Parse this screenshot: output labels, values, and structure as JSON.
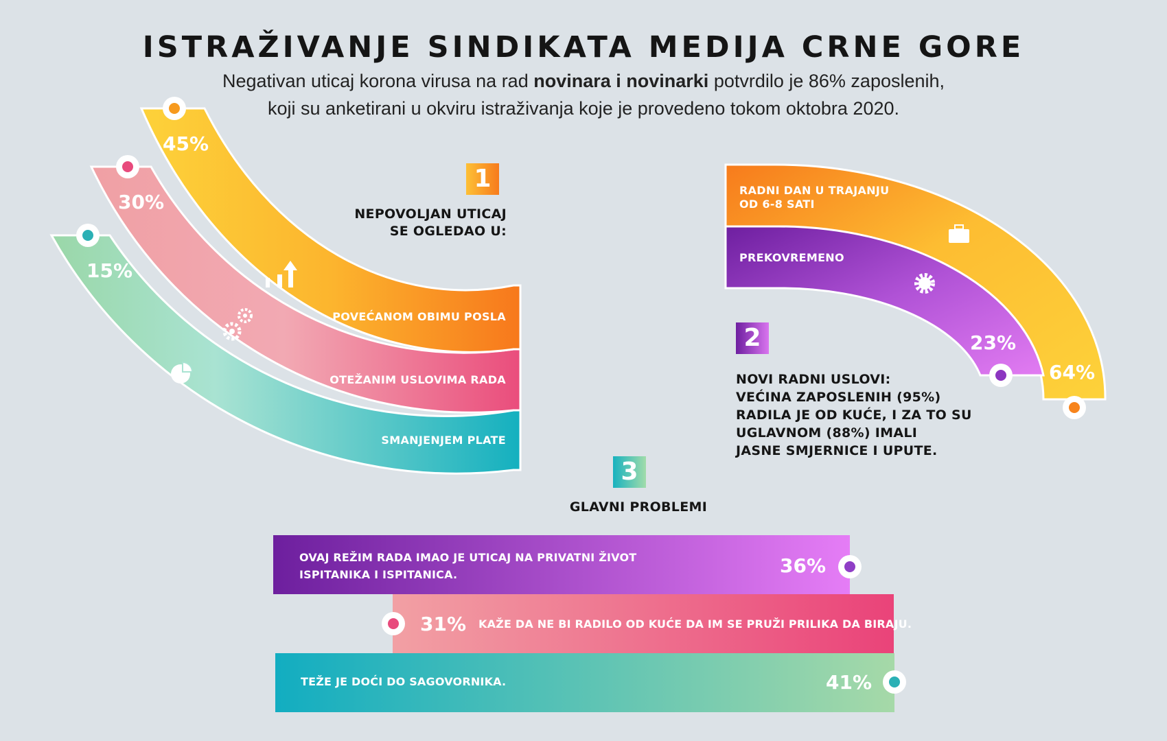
{
  "header": {
    "title": "ISTRAŽIVANJE SINDIKATA MEDIJA CRNE GORE",
    "subtitle_pre": "Negativan uticaj korona virusa na rad ",
    "subtitle_bold": "novinara i novinarki",
    "subtitle_post": " potvrdilo je 86% zaposlenih,",
    "subtitle_line2": "koji su anketirani u okviru istraživanja koje je provedeno tokom oktobra 2020."
  },
  "section1": {
    "number": "1",
    "heading_line1": "NEPOVOLJAN UTICAJ",
    "heading_line2": "SE OGLEDAO U:",
    "items": [
      {
        "label": "POVEĆANOM OBIMU POSLA",
        "percent": "45%",
        "value": 45,
        "color": "#f78f1e",
        "icon": "bar-chart-up-icon"
      },
      {
        "label": "OTEŽANIM USLOVIMA RADA",
        "percent": "30%",
        "value": 30,
        "color": "#ec5a82",
        "icon": "gears-icon"
      },
      {
        "label": "SMANJENJEM PLATE",
        "percent": "15%",
        "value": 15,
        "color": "#2fb7b8",
        "icon": "pie-chart-icon"
      }
    ]
  },
  "section2": {
    "number": "2",
    "heading_lines": [
      "NOVI RADNI USLOVI:",
      "VEĆINA ZAPOSLENIH (95%)",
      "RADILA JE OD KUĆE, I ZA TO SU",
      "UGLAVNOM (88%) IMALI",
      "JASNE SMJERNICE I UPUTE."
    ],
    "items": [
      {
        "label_line1": "RADNI DAN U TRAJANJU",
        "label_line2": "OD 6-8 SATI",
        "percent": "64%",
        "value": 64,
        "color": "#f9b233",
        "icon": "briefcase-icon"
      },
      {
        "label_line1": "PREKOVREMENO",
        "label_line2": "",
        "percent": "23%",
        "value": 23,
        "color": "#9b3fc8",
        "icon": "gear-icon"
      }
    ]
  },
  "section3": {
    "number": "3",
    "heading": "GLAVNI PROBLEMI",
    "items": [
      {
        "text_line1": "OVAJ REŽIM RADA IMAO JE UTICAJ NA PRIVATNI ŽIVOT",
        "text_line2": "ISPITANIKA I ISPITANICA.",
        "percent": "36%",
        "value": 36,
        "color": "#8a3cc0"
      },
      {
        "text_line1": "KAŽE DA NE BI RADILO  OD KUĆE DA IM SE PRUŽI PRILIKA DA BIRAJU.",
        "text_line2": "",
        "percent": "31%",
        "value": 31,
        "color": "#ea4d7c"
      },
      {
        "text_line1": "TEŽE JE DOĆI DO SAGOVORNIKA.",
        "text_line2": "",
        "percent": "41%",
        "value": 41,
        "color": "#1fb2b8"
      }
    ]
  }
}
